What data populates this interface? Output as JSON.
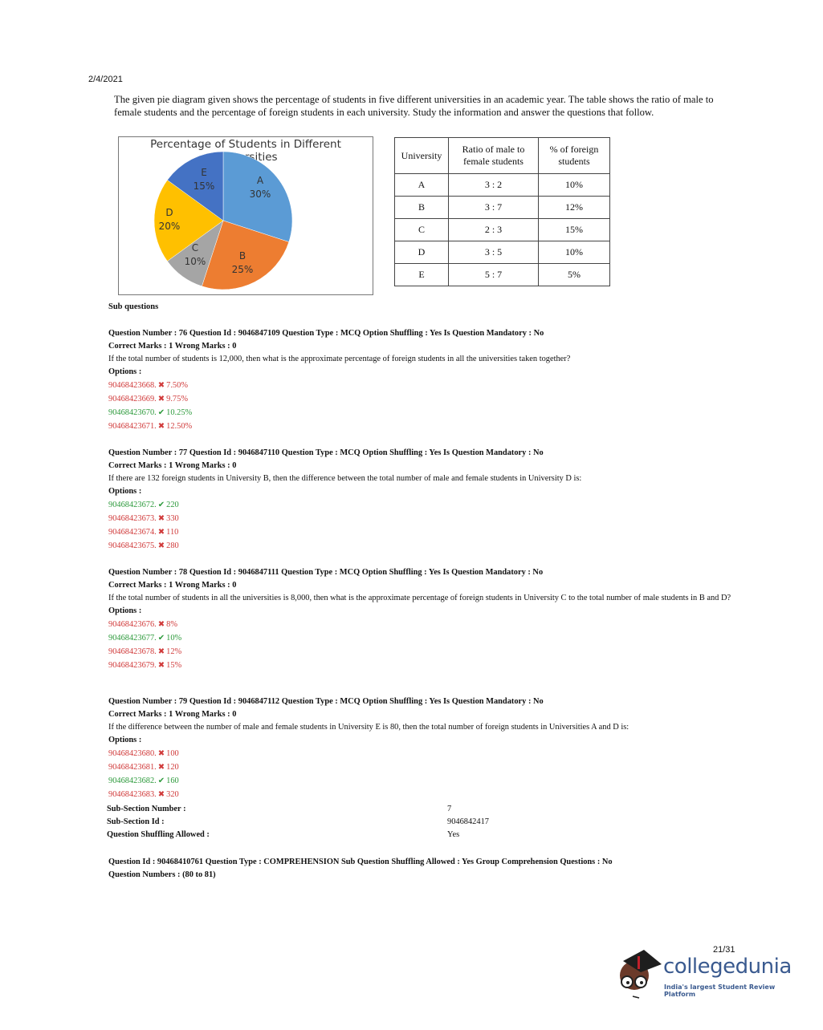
{
  "date": "2/4/2021",
  "intro": "The given pie diagram given shows the percentage of students in five different universities in an academic year. The table shows the ratio of male to female students and the percentage of foreign students in each university. Study the information and answer the questions that follow.",
  "chart_data": {
    "type": "pie",
    "title": "Percentage of Students in Different Universities",
    "categories": [
      "A",
      "B",
      "C",
      "D",
      "E"
    ],
    "values": [
      30,
      25,
      10,
      20,
      15
    ],
    "labels": [
      "30%",
      "25%",
      "10%",
      "20%",
      "15%"
    ],
    "colors": [
      "#5b9bd5",
      "#ed7d31",
      "#a5a5a5",
      "#ffc000",
      "#4472c4"
    ]
  },
  "table": {
    "headers": [
      "University",
      "Ratio of male to female students",
      "% of foreign students"
    ],
    "rows": [
      [
        "A",
        "3 : 2",
        "10%"
      ],
      [
        "B",
        "3 : 7",
        "12%"
      ],
      [
        "C",
        "2 : 3",
        "15%"
      ],
      [
        "D",
        "3 : 5",
        "10%"
      ],
      [
        "E",
        "5 : 7",
        "5%"
      ]
    ]
  },
  "sub_questions_label": "Sub questions",
  "questions": [
    {
      "header": "Question Number : 76 Question Id : 9046847109 Question Type : MCQ Option Shuffling : Yes Is Question Mandatory : No",
      "marks": "Correct Marks : 1 Wrong Marks : 0",
      "text": "If the total number of students is 12,000, then what is the approximate percentage of foreign students in all the universities taken together?",
      "options_label": "Options :",
      "options": [
        {
          "id": "90468423668.",
          "value": "7.50%",
          "correct": false
        },
        {
          "id": "90468423669.",
          "value": "9.75%",
          "correct": false
        },
        {
          "id": "90468423670.",
          "value": "10.25%",
          "correct": true
        },
        {
          "id": "90468423671.",
          "value": "12.50%",
          "correct": false
        }
      ]
    },
    {
      "header": "Question Number : 77 Question Id : 9046847110 Question Type : MCQ Option Shuffling : Yes Is Question Mandatory : No",
      "marks": "Correct Marks : 1 Wrong Marks : 0",
      "text": "If there are 132 foreign students in University B, then the difference between the total number of male and female students in University D is:",
      "options_label": "Options :",
      "options": [
        {
          "id": "90468423672.",
          "value": "220",
          "correct": true
        },
        {
          "id": "90468423673.",
          "value": "330",
          "correct": false
        },
        {
          "id": "90468423674.",
          "value": "110",
          "correct": false
        },
        {
          "id": "90468423675.",
          "value": "280",
          "correct": false
        }
      ]
    },
    {
      "header": "Question Number : 78 Question Id : 9046847111 Question Type : MCQ Option Shuffling : Yes Is Question Mandatory : No",
      "marks": "Correct Marks : 1 Wrong Marks : 0",
      "text": "If the total number of students in all the universities is 8,000, then what is the approximate percentage of foreign students in University C to the total number of male students in B and D?",
      "options_label": "Options :",
      "options": [
        {
          "id": "90468423676.",
          "value": "8%",
          "correct": false
        },
        {
          "id": "90468423677.",
          "value": "10%",
          "correct": true
        },
        {
          "id": "90468423678.",
          "value": "12%",
          "correct": false
        },
        {
          "id": "90468423679.",
          "value": "15%",
          "correct": false
        }
      ]
    },
    {
      "header": "Question Number : 79 Question Id : 9046847112 Question Type : MCQ Option Shuffling : Yes Is Question Mandatory : No",
      "marks": "Correct Marks : 1 Wrong Marks : 0",
      "text": "If the difference between the number of male and female students in University E is 80, then the total number of foreign students in Universities A and D is:",
      "options_label": "Options :",
      "options": [
        {
          "id": "90468423680.",
          "value": "100",
          "correct": false
        },
        {
          "id": "90468423681.",
          "value": "120",
          "correct": false
        },
        {
          "id": "90468423682.",
          "value": "160",
          "correct": true
        },
        {
          "id": "90468423683.",
          "value": "320",
          "correct": false
        }
      ]
    }
  ],
  "meta": [
    {
      "label": "Sub-Section Number :",
      "value": "7"
    },
    {
      "label": "Sub-Section Id :",
      "value": "9046842417"
    },
    {
      "label": "Question Shuffling Allowed :",
      "value": "Yes"
    }
  ],
  "comprehension": {
    "line1": "Question Id : 90468410761 Question Type : COMPREHENSION Sub Question Shuffling Allowed : Yes Group Comprehension Questions : No",
    "line2": "Question Numbers : (80 to 81)"
  },
  "page_number": "21/31",
  "logo": {
    "brand": "collegedunia",
    "tagline": "India's largest Student Review Platform",
    "brand_color": "#3a5a8f"
  },
  "marks": {
    "correct_color": "#2d9a3c",
    "wrong_color": "#d03a3a"
  }
}
